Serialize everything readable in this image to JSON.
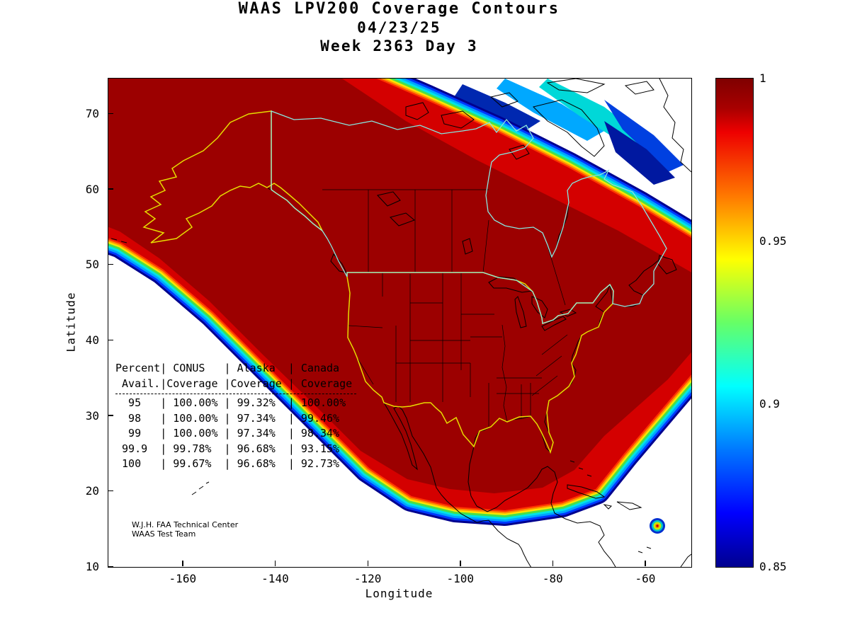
{
  "title": {
    "line1": "WAAS LPV200 Coverage Contours",
    "line2": "04/23/25",
    "line3": "Week 2363 Day 3"
  },
  "chart_data": {
    "type": "heatmap",
    "subtype": "filled-contour-coverage-map",
    "title": "WAAS LPV200 Coverage Contours",
    "date": "04/23/25",
    "gps_week": "Week 2363 Day 3",
    "xlabel": "Longitude",
    "ylabel": "Latitude",
    "xlim": [
      -176.2,
      -50.2
    ],
    "ylim": [
      10,
      74.7
    ],
    "x_ticks": [
      -160,
      -140,
      -120,
      -100,
      -80,
      -60
    ],
    "y_ticks": [
      10,
      20,
      30,
      40,
      50,
      60,
      70
    ],
    "grid": false,
    "region_description": "LPV200 availability contours over North America; dark red core (availability 1.0) covers CONUS, Alaska and most of Canada, with jet-colormap rainbow fringe (red-orange-yellow-green-cyan-blue) along the Pacific southwest edge, Mexico/Caribbean southeast edge, and a wide transition band across the Canadian Arctic archipelago",
    "colorbar": {
      "min": 0.85,
      "max": 1.0,
      "ticks": [
        "1",
        "0.95",
        "0.9",
        "0.85"
      ],
      "tick_values": [
        1,
        0.95,
        0.9,
        0.85
      ],
      "colormap": "jet",
      "position": "right",
      "stops": [
        {
          "pos": 0,
          "color": "#7F0000"
        },
        {
          "pos": 6,
          "color": "#A80000"
        },
        {
          "pos": 11,
          "color": "#EE0000"
        },
        {
          "pos": 24,
          "color": "#FF7800"
        },
        {
          "pos": 37,
          "color": "#FFFF00"
        },
        {
          "pos": 50,
          "color": "#66FF66"
        },
        {
          "pos": 63,
          "color": "#00FFFF"
        },
        {
          "pos": 76,
          "color": "#0078FF"
        },
        {
          "pos": 89,
          "color": "#0000FF"
        },
        {
          "pos": 100,
          "color": "#00008F"
        }
      ]
    },
    "coverage_table": {
      "columns": [
        "Percent Avail.",
        "CONUS Coverage",
        "Alaska Coverage",
        "Canada Coverage"
      ],
      "rows": [
        [
          "95",
          "100.00%",
          "99.32%",
          "100.00%"
        ],
        [
          "98",
          "100.00%",
          "97.34%",
          "99.46%"
        ],
        [
          "99",
          "100.00%",
          "97.34%",
          "98.34%"
        ],
        [
          "99.9",
          "99.78%",
          "96.68%",
          "93.15%"
        ],
        [
          "100",
          "99.67%",
          "96.68%",
          "92.73%"
        ]
      ],
      "header_lines": [
        "Percent| CONUS   | Alaska  | Canada",
        " Avail.|Coverage |Coverage | Coverage"
      ],
      "row_lines": [
        "  95   | 100.00% | 99.32%  | 100.00%",
        "  98   | 100.00% | 97.34%  | 99.46%",
        "  99   | 100.00% | 97.34%  | 98.34%",
        " 99.9  | 99.78%  | 96.68%  | 93.15%",
        " 100   | 99.67%  | 96.68%  | 92.73%"
      ]
    },
    "annotations": {
      "credit_line1": "W.J.H. FAA Technical Center",
      "credit_line2": "WAAS Test Team"
    },
    "style": {
      "core_color": "#9C0000",
      "band_red": "#D40000",
      "conus_outline": "#E8DC00",
      "canada_outline": "#8FE8E0",
      "coast_outline": "#000000"
    }
  }
}
